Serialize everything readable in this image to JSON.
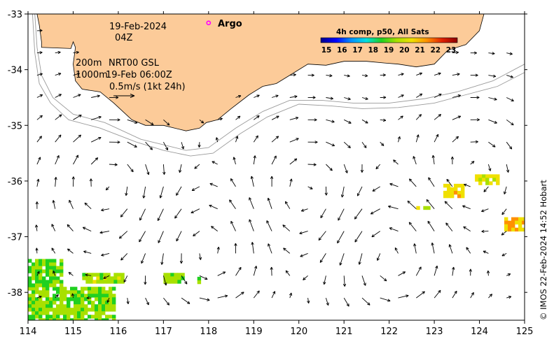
{
  "map": {
    "date": "19-Feb-2024",
    "hour": "04Z",
    "argo_label": "Argo",
    "depth_200": "200m",
    "depth_1000": "1000m",
    "product": "NRT00 GSL",
    "product_time": "19-Feb 06:00Z",
    "scale_label": "0.5m/s (1kt 24h)",
    "credit": "© IMOS 22-Feb-2024 14:52 Hobart",
    "colors": {
      "land": "#fccb99",
      "isobath": "#9a9a9a",
      "argo": "#ff00ff",
      "arrow": "#000000"
    },
    "argo_position": {
      "lon": 118.0,
      "lat": -33.16
    }
  },
  "chart_data": {
    "type": "map",
    "x_axis": {
      "range": [
        114,
        125
      ],
      "ticks": [
        "114",
        "115",
        "116",
        "117",
        "118",
        "119",
        "120",
        "121",
        "122",
        "123",
        "124",
        "125"
      ]
    },
    "y_axis": {
      "range": [
        -38.5,
        -33
      ],
      "ticks": [
        "-33",
        "-34",
        "-35",
        "-36",
        "-37",
        "-38"
      ]
    },
    "colorbar": {
      "title": "4h comp, p50, All Sats",
      "range": [
        15,
        23
      ],
      "ticks": [
        "15",
        "16",
        "17",
        "18",
        "19",
        "20",
        "21",
        "22",
        "23"
      ],
      "colors": [
        "#00008b",
        "#0000ff",
        "#0090ff",
        "#00e0e0",
        "#20d020",
        "#a8e000",
        "#f0e000",
        "#ff9000",
        "#e02000",
        "#8b0000"
      ]
    },
    "sst_patches": [
      {
        "lon": 114.0,
        "lat": -38.5,
        "lon2": 115.9,
        "lat2": -37.9,
        "temp": 19.2
      },
      {
        "lon": 114.0,
        "lat": -37.9,
        "lon2": 114.7,
        "lat2": -37.4,
        "temp": 18.9
      },
      {
        "lon": 115.2,
        "lat": -37.8,
        "lon2": 116.1,
        "lat2": -37.65,
        "temp": 19.5
      },
      {
        "lon": 117.0,
        "lat": -37.8,
        "lon2": 117.4,
        "lat2": -37.65,
        "temp": 19.3
      },
      {
        "lon": 117.75,
        "lat": -37.8,
        "lon2": 117.8,
        "lat2": -37.72,
        "temp": 19.5
      },
      {
        "lon": 122.6,
        "lat": -36.5,
        "lon2": 122.9,
        "lat2": -36.45,
        "temp": 19.6
      },
      {
        "lon": 123.2,
        "lat": -36.3,
        "lon2": 123.6,
        "lat2": -36.05,
        "temp": 20.4
      },
      {
        "lon": 123.9,
        "lat": -36.05,
        "lon2": 124.4,
        "lat2": -35.88,
        "temp": 20.2
      },
      {
        "lon": 124.55,
        "lat": -36.85,
        "lon2": 125.0,
        "lat2": -36.65,
        "temp": 20.8
      }
    ]
  }
}
